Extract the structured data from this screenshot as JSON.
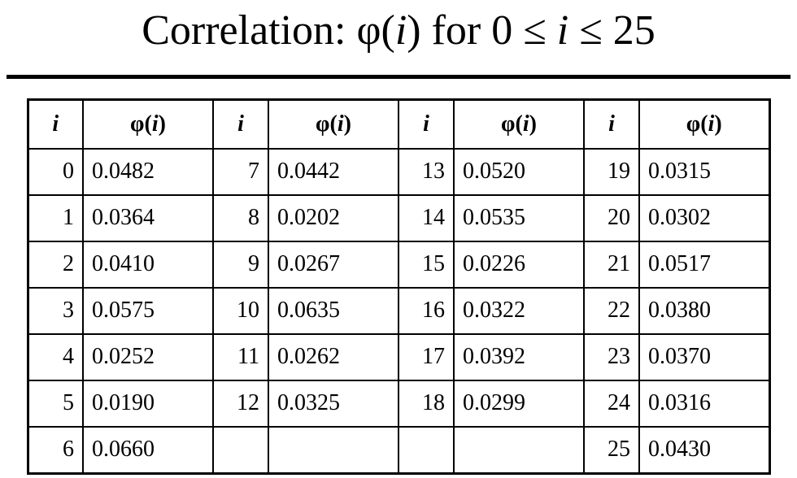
{
  "title": {
    "pre": "Correlation: ",
    "phi_open": "φ(",
    "i_var1": "i",
    "mid": ") for 0 ≤ ",
    "i_var2": "i",
    "post": " ≤ 25"
  },
  "table": {
    "header_i": "i",
    "header_phi": {
      "phi_open": "φ(",
      "i_var": "i",
      "close": ")"
    },
    "rows": [
      [
        "0",
        "0.0482",
        "7",
        "0.0442",
        "13",
        "0.0520",
        "19",
        "0.0315"
      ],
      [
        "1",
        "0.0364",
        "8",
        "0.0202",
        "14",
        "0.0535",
        "20",
        "0.0302"
      ],
      [
        "2",
        "0.0410",
        "9",
        "0.0267",
        "15",
        "0.0226",
        "21",
        "0.0517"
      ],
      [
        "3",
        "0.0575",
        "10",
        "0.0635",
        "16",
        "0.0322",
        "22",
        "0.0380"
      ],
      [
        "4",
        "0.0252",
        "11",
        "0.0262",
        "17",
        "0.0392",
        "23",
        "0.0370"
      ],
      [
        "5",
        "0.0190",
        "12",
        "0.0325",
        "18",
        "0.0299",
        "24",
        "0.0316"
      ],
      [
        "6",
        "0.0660",
        "",
        "",
        "",
        "",
        "25",
        "0.0430"
      ]
    ]
  },
  "colors": {
    "background": "#ffffff",
    "text": "#000000",
    "border": "#000000"
  }
}
